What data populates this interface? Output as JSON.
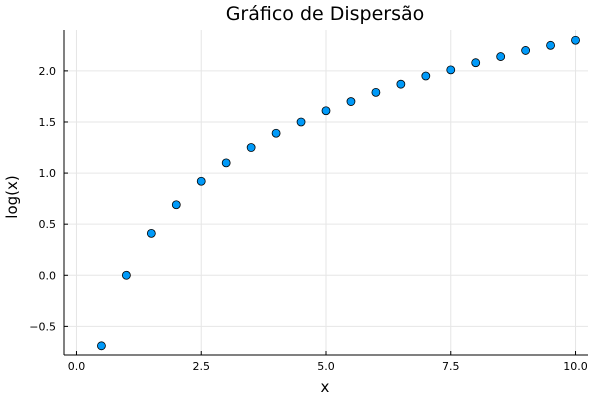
{
  "chart_data": {
    "type": "scatter",
    "title": "Gráfico de Dispersão",
    "xlabel": "x",
    "ylabel": "log(x)",
    "xlim": [
      -0.25,
      10.25
    ],
    "ylim": [
      -0.78,
      2.4
    ],
    "xticks": [
      0,
      2.5,
      5,
      7.5,
      10
    ],
    "xtick_labels": [
      "0.0",
      "2.5",
      "5.0",
      "7.5",
      "10.0"
    ],
    "yticks": [
      -0.5,
      0,
      0.5,
      1.0,
      1.5,
      2.0
    ],
    "ytick_labels": [
      "−0.5",
      "0.0",
      "0.5",
      "1.0",
      "1.5",
      "2.0"
    ],
    "grid": true,
    "legend": "none",
    "marker_color": "#009af9",
    "series": [
      {
        "x": [
          0.5,
          1.0,
          1.5,
          2.0,
          2.5,
          3.0,
          3.5,
          4.0,
          4.5,
          5.0,
          5.5,
          6.0,
          6.5,
          7.0,
          7.5,
          8.0,
          8.5,
          9.0,
          9.5,
          10.0
        ],
        "y": [
          -0.69,
          0.0,
          0.41,
          0.69,
          0.92,
          1.1,
          1.25,
          1.39,
          1.5,
          1.61,
          1.7,
          1.79,
          1.87,
          1.95,
          2.01,
          2.08,
          2.14,
          2.2,
          2.25,
          2.3
        ]
      }
    ]
  }
}
